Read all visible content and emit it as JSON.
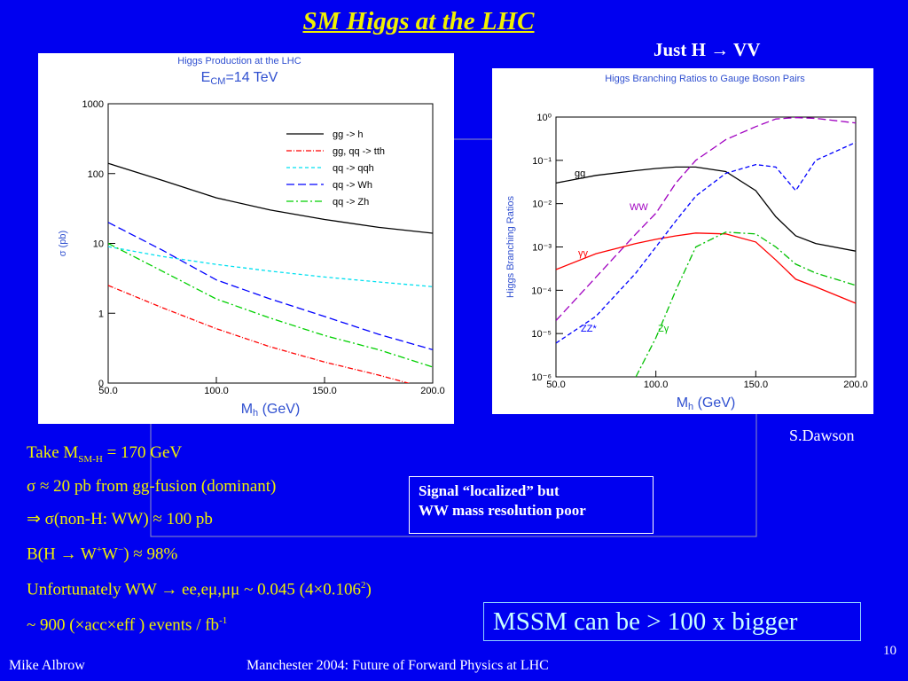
{
  "title": "SM Higgs at the LHC",
  "subtitle": "Just H → VV",
  "credit": "S.Dawson",
  "bullets": [
    [
      "Take M",
      "SM-H",
      " = 170 GeV"
    ],
    [
      "σ ≈ 20 pb from gg-fusion (dominant)"
    ],
    [
      "⇒  σ(non-H: WW)  ≈  100 pb"
    ],
    [
      "B(H → W",
      "+",
      "W",
      "−",
      ") ≈  98%"
    ],
    [
      "Unfortunately WW → ee,eμ,μμ ~ 0.045 (4×0.106",
      "2",
      ")"
    ],
    [
      "~ 900 (×acc×eff ) events / fb",
      "-1"
    ]
  ],
  "note_box": [
    "Signal “localized” but",
    "WW mass resolution poor"
  ],
  "highlight": "MSSM can be > 100 x bigger",
  "footer": {
    "author": "Mike Albrow",
    "event": "Manchester 2004: Future of Forward Physics at LHC",
    "page": "10"
  },
  "chart_data": [
    {
      "type": "line",
      "title": "Higgs Production at the LHC",
      "subtitle": [
        "E",
        "CM",
        "=14 TeV"
      ],
      "x_label": [
        "M",
        "h",
        " (GeV)"
      ],
      "y_label": "σ (pb)",
      "x": [
        50,
        75,
        100,
        125,
        150,
        175,
        200
      ],
      "xlim": [
        50,
        200
      ],
      "xticks": [
        {
          "value": 50,
          "label": "50.0"
        },
        {
          "value": 100,
          "label": "100.0"
        },
        {
          "value": 150,
          "label": "150.0"
        },
        {
          "value": 200,
          "label": "200.0"
        }
      ],
      "ylim": [
        0.1,
        1000
      ],
      "y_log": true,
      "yticks": [
        {
          "value": 0.1,
          "label": "0"
        },
        1,
        10,
        100,
        1000
      ],
      "legend": "upper right",
      "series": [
        {
          "name": "gg -> h",
          "color": "#000000",
          "dash": "",
          "values": [
            140,
            80,
            45,
            30,
            22,
            17,
            14
          ]
        },
        {
          "name": "gg, qq -> tth",
          "color": "#ff0000",
          "dash": "6 2 1 2",
          "values": [
            2.5,
            1.2,
            0.6,
            0.33,
            0.2,
            0.13,
            0.08
          ]
        },
        {
          "name": "qq -> qqh",
          "color": "#00e0f0",
          "dash": "4 3",
          "values": [
            9,
            6.5,
            5,
            4,
            3.3,
            2.8,
            2.4
          ]
        },
        {
          "name": "qq -> Wh",
          "color": "#0000ff",
          "dash": "9 4",
          "values": [
            20,
            8,
            3,
            1.6,
            0.9,
            0.5,
            0.3
          ]
        },
        {
          "name": "qq -> Zh",
          "color": "#00d000",
          "dash": "8 3 2 3",
          "values": [
            10,
            4,
            1.6,
            0.85,
            0.48,
            0.3,
            0.17
          ]
        }
      ]
    },
    {
      "type": "line",
      "title": "Higgs Branching Ratios to Gauge Boson Pairs",
      "x_label": [
        "M",
        "h",
        " (GeV)"
      ],
      "y_label": "Higgs Branching Ratios",
      "x": [
        50,
        70,
        90,
        100,
        110,
        120,
        135,
        150,
        160,
        170,
        180,
        200
      ],
      "xlim": [
        50,
        200
      ],
      "xticks": [
        {
          "value": 50,
          "label": "50.0"
        },
        {
          "value": 100,
          "label": "100.0"
        },
        {
          "value": 150,
          "label": "150.0"
        },
        {
          "value": 200,
          "label": "200.0"
        }
      ],
      "ylim": [
        1e-06,
        1
      ],
      "y_log": true,
      "yticks": [
        {
          "value": 1e-06,
          "label": "10⁻⁶"
        },
        {
          "value": 1e-05,
          "label": "10⁻⁵"
        },
        {
          "value": 0.0001,
          "label": "10⁻⁴"
        },
        {
          "value": 0.001,
          "label": "10⁻³"
        },
        {
          "value": 0.01,
          "label": "10⁻²"
        },
        {
          "value": 0.1,
          "label": "10⁻¹"
        },
        {
          "value": 1,
          "label": "10⁰"
        }
      ],
      "series": [
        {
          "name": "gg",
          "color": "#000000",
          "dash": "",
          "values": [
            0.03,
            0.045,
            0.058,
            0.065,
            0.07,
            0.07,
            0.055,
            0.02,
            0.005,
            0.0018,
            0.0012,
            0.0008
          ]
        },
        {
          "name": "WW",
          "color": "#a000c0",
          "dash": "9 4",
          "values": [
            2e-05,
            0.0002,
            0.002,
            0.006,
            0.03,
            0.1,
            0.3,
            0.6,
            0.9,
            0.97,
            0.93,
            0.73
          ]
        },
        {
          "name": "γγ",
          "color": "#ff0000",
          "dash": "",
          "values": [
            0.0003,
            0.0007,
            0.0012,
            0.0015,
            0.0018,
            0.0021,
            0.002,
            0.0013,
            0.0005,
            0.00018,
            0.00012,
            5e-05
          ]
        },
        {
          "name": "ZZ*",
          "color": "#0000ff",
          "dash": "5 3",
          "values": [
            6e-06,
            2.5e-05,
            0.00025,
            0.001,
            0.004,
            0.015,
            0.05,
            0.08,
            0.07,
            0.02,
            0.1,
            0.26
          ]
        },
        {
          "name": "Zγ",
          "color": "#00c000",
          "dash": "8 3 2 3",
          "values": [
            null,
            null,
            1e-06,
            8e-06,
            0.0001,
            0.001,
            0.0022,
            0.002,
            0.001,
            0.0004,
            0.00025,
            0.00013
          ]
        }
      ]
    }
  ]
}
